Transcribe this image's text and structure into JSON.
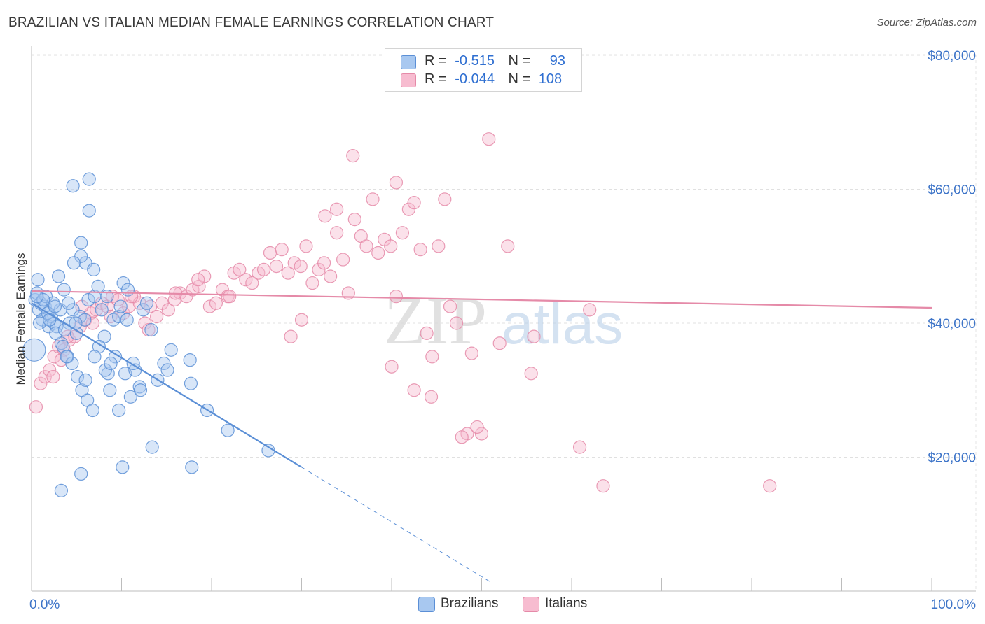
{
  "title": "BRAZILIAN VS ITALIAN MEDIAN FEMALE EARNINGS CORRELATION CHART",
  "source": "Source: ZipAtlas.com",
  "legend": {
    "rows": [
      {
        "r_label": "R =",
        "r_value": "-0.515",
        "n_label": "N =",
        "n_value": "93",
        "color": "#a8c8f0",
        "stroke": "#5b8fd6"
      },
      {
        "r_label": "R =",
        "r_value": "-0.044",
        "n_label": "N =",
        "n_value": "108",
        "color": "#f7bcd0",
        "stroke": "#e58aa8"
      }
    ]
  },
  "bottom_legend": [
    {
      "label": "Brazilians",
      "color": "#a8c8f0",
      "stroke": "#5b8fd6"
    },
    {
      "label": "Italians",
      "color": "#f7bcd0",
      "stroke": "#e58aa8"
    }
  ],
  "watermark": {
    "zip": "ZIP",
    "atlas": "atlas"
  },
  "chart_data": {
    "type": "scatter",
    "title": "BRAZILIAN VS ITALIAN MEDIAN FEMALE EARNINGS CORRELATION CHART",
    "xlabel": "",
    "ylabel": "Median Female Earnings",
    "xlim": [
      0,
      100
    ],
    "ylim": [
      0,
      85000
    ],
    "x_tick_labels": [
      "0.0%",
      "100.0%"
    ],
    "y_ticks": [
      20000,
      40000,
      60000,
      80000
    ],
    "y_tick_labels": [
      "$20,000",
      "$40,000",
      "$60,000",
      "$80,000"
    ],
    "grid": true,
    "series": [
      {
        "name": "Brazilians",
        "color": "#5b8fd6",
        "fill": "#a8c8f0",
        "trend": {
          "x0": 0,
          "y0": 43000,
          "x1": 30,
          "y1": 18500,
          "dash_to_x": 51
        },
        "points": [
          [
            0.4,
            43500
          ],
          [
            0.6,
            44500
          ],
          [
            0.8,
            42000
          ],
          [
            1.0,
            43000
          ],
          [
            1.2,
            40500
          ],
          [
            1.5,
            42500
          ],
          [
            0.7,
            46500
          ],
          [
            1.9,
            39500
          ],
          [
            2.2,
            41000
          ],
          [
            2.5,
            40000
          ],
          [
            2.8,
            39500
          ],
          [
            3.2,
            42000
          ],
          [
            3.0,
            47000
          ],
          [
            3.6,
            45000
          ],
          [
            1.6,
            44000
          ],
          [
            2.4,
            43000
          ],
          [
            4.2,
            40000
          ],
          [
            4.6,
            42000
          ],
          [
            5.0,
            38500
          ],
          [
            5.4,
            41000
          ],
          [
            5.9,
            40500
          ],
          [
            6.3,
            43500
          ],
          [
            7.0,
            44000
          ],
          [
            7.4,
            45500
          ],
          [
            8.1,
            38000
          ],
          [
            8.5,
            32500
          ],
          [
            9.1,
            40500
          ],
          [
            9.7,
            41000
          ],
          [
            10.2,
            46000
          ],
          [
            10.7,
            45000
          ],
          [
            6.0,
            49000
          ],
          [
            5.5,
            50000
          ],
          [
            5.5,
            52000
          ],
          [
            6.9,
            48000
          ],
          [
            4.7,
            49000
          ],
          [
            4.1,
            43000
          ],
          [
            3.3,
            37000
          ],
          [
            3.5,
            36500
          ],
          [
            4.0,
            35000
          ],
          [
            4.5,
            34000
          ],
          [
            5.1,
            32000
          ],
          [
            5.6,
            30000
          ],
          [
            6.2,
            28500
          ],
          [
            6.8,
            27000
          ],
          [
            7.5,
            36500
          ],
          [
            8.2,
            33000
          ],
          [
            8.7,
            30000
          ],
          [
            9.3,
            35000
          ],
          [
            9.7,
            27000
          ],
          [
            10.4,
            32500
          ],
          [
            11.0,
            29000
          ],
          [
            11.5,
            33000
          ],
          [
            12.0,
            30500
          ],
          [
            12.4,
            42000
          ],
          [
            12.8,
            43000
          ],
          [
            13.3,
            39000
          ],
          [
            14.0,
            31500
          ],
          [
            14.7,
            34000
          ],
          [
            15.1,
            33000
          ],
          [
            15.5,
            36000
          ],
          [
            17.6,
            34500
          ],
          [
            17.7,
            31000
          ],
          [
            19.5,
            27000
          ],
          [
            21.8,
            24000
          ],
          [
            26.3,
            21000
          ],
          [
            13.4,
            21500
          ],
          [
            10.1,
            18500
          ],
          [
            17.8,
            18500
          ],
          [
            5.5,
            17500
          ],
          [
            3.3,
            15000
          ],
          [
            4.6,
            60500
          ],
          [
            6.4,
            56800
          ],
          [
            6.4,
            61500
          ],
          [
            8.4,
            44000
          ],
          [
            7.0,
            35000
          ],
          [
            6.0,
            31500
          ],
          [
            2.7,
            38500
          ],
          [
            1.8,
            41500
          ],
          [
            0.9,
            40000
          ],
          [
            0.3,
            36000
          ],
          [
            2.0,
            40500
          ],
          [
            3.7,
            39000
          ],
          [
            4.9,
            40000
          ],
          [
            1.3,
            43500
          ],
          [
            2.6,
            42500
          ],
          [
            0.6,
            44000
          ],
          [
            8.8,
            34000
          ],
          [
            9.9,
            42500
          ],
          [
            11.3,
            34000
          ],
          [
            12.1,
            30000
          ],
          [
            10.6,
            40500
          ],
          [
            7.8,
            42000
          ],
          [
            3.9,
            35000
          ]
        ]
      },
      {
        "name": "Italians",
        "color": "#e58aa8",
        "fill": "#f7bcd0",
        "trend": {
          "x0": 0,
          "y0": 44800,
          "x1": 100,
          "y1": 42300
        },
        "points": [
          [
            0.5,
            27500
          ],
          [
            1.0,
            31000
          ],
          [
            1.5,
            32000
          ],
          [
            2.0,
            33000
          ],
          [
            2.5,
            35000
          ],
          [
            3.0,
            36500
          ],
          [
            3.6,
            36000
          ],
          [
            4.2,
            37500
          ],
          [
            4.8,
            38000
          ],
          [
            5.4,
            39500
          ],
          [
            6.0,
            40500
          ],
          [
            6.6,
            41500
          ],
          [
            7.2,
            42000
          ],
          [
            7.8,
            43000
          ],
          [
            8.4,
            42500
          ],
          [
            9.0,
            44000
          ],
          [
            9.6,
            43500
          ],
          [
            10.2,
            41500
          ],
          [
            10.8,
            42500
          ],
          [
            11.4,
            44000
          ],
          [
            12.0,
            43000
          ],
          [
            12.6,
            40000
          ],
          [
            13.2,
            42500
          ],
          [
            13.9,
            41000
          ],
          [
            14.5,
            43000
          ],
          [
            15.2,
            42000
          ],
          [
            15.9,
            43500
          ],
          [
            16.5,
            44500
          ],
          [
            17.2,
            44000
          ],
          [
            17.9,
            45000
          ],
          [
            18.6,
            45500
          ],
          [
            19.2,
            47000
          ],
          [
            19.8,
            42500
          ],
          [
            20.5,
            43000
          ],
          [
            21.2,
            45000
          ],
          [
            21.8,
            44000
          ],
          [
            22.5,
            47500
          ],
          [
            23.1,
            48000
          ],
          [
            23.8,
            46500
          ],
          [
            24.5,
            46000
          ],
          [
            25.2,
            47500
          ],
          [
            25.8,
            48000
          ],
          [
            26.5,
            50500
          ],
          [
            27.2,
            48500
          ],
          [
            27.8,
            51000
          ],
          [
            28.5,
            47500
          ],
          [
            29.2,
            49000
          ],
          [
            29.9,
            48500
          ],
          [
            30.5,
            51500
          ],
          [
            31.2,
            46000
          ],
          [
            31.9,
            48000
          ],
          [
            32.5,
            49000
          ],
          [
            33.2,
            47000
          ],
          [
            33.9,
            53500
          ],
          [
            34.6,
            49500
          ],
          [
            35.2,
            44500
          ],
          [
            35.9,
            55500
          ],
          [
            36.6,
            53000
          ],
          [
            37.2,
            51500
          ],
          [
            37.9,
            58500
          ],
          [
            38.5,
            50500
          ],
          [
            39.2,
            52500
          ],
          [
            39.9,
            51500
          ],
          [
            40.5,
            61000
          ],
          [
            41.2,
            53500
          ],
          [
            41.9,
            57000
          ],
          [
            42.5,
            58000
          ],
          [
            43.2,
            51000
          ],
          [
            43.9,
            38500
          ],
          [
            44.5,
            35000
          ],
          [
            45.2,
            51500
          ],
          [
            45.9,
            58500
          ],
          [
            46.5,
            42500
          ],
          [
            47.2,
            40000
          ],
          [
            48.4,
            23500
          ],
          [
            48.9,
            35500
          ],
          [
            50.0,
            23500
          ],
          [
            50.8,
            67500
          ],
          [
            52.0,
            37000
          ],
          [
            52.9,
            51500
          ],
          [
            55.5,
            32500
          ],
          [
            55.8,
            38000
          ],
          [
            60.9,
            21500
          ],
          [
            63.5,
            15700
          ],
          [
            35.7,
            65000
          ],
          [
            33.9,
            57000
          ],
          [
            32.6,
            56000
          ],
          [
            44.4,
            29000
          ],
          [
            42.5,
            30000
          ],
          [
            40.0,
            33500
          ],
          [
            40.5,
            44000
          ],
          [
            30.0,
            40500
          ],
          [
            28.8,
            38000
          ],
          [
            22.0,
            44000
          ],
          [
            18.5,
            46500
          ],
          [
            16.0,
            44500
          ],
          [
            13.0,
            39000
          ],
          [
            11.1,
            44000
          ],
          [
            8.8,
            41000
          ],
          [
            6.8,
            40000
          ],
          [
            5.6,
            42500
          ],
          [
            4.0,
            38000
          ],
          [
            3.3,
            34500
          ],
          [
            2.4,
            32000
          ],
          [
            47.8,
            23000
          ],
          [
            49.5,
            24500
          ],
          [
            62.0,
            42000
          ],
          [
            82.0,
            15700
          ]
        ]
      }
    ]
  }
}
